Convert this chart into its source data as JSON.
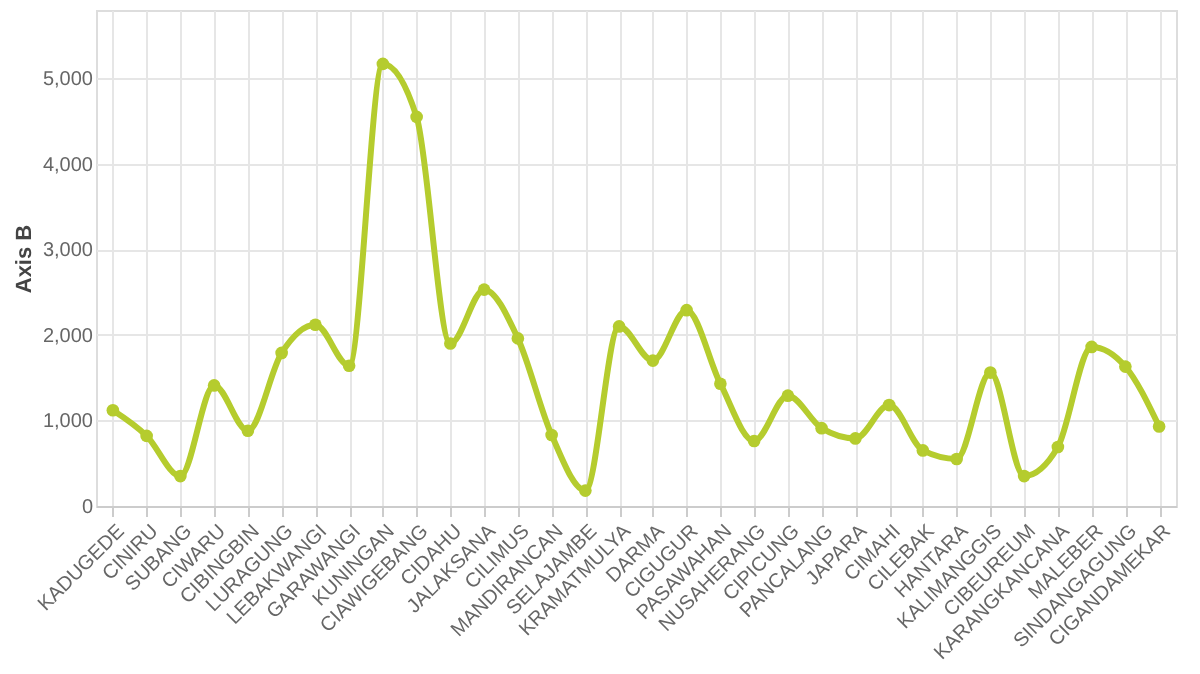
{
  "chart_data": {
    "type": "line",
    "ylabel": "Axis B",
    "categories": [
      "KADUGEDE",
      "CINIRU",
      "SUBANG",
      "CIWARU",
      "CIBINGBIN",
      "LURAGUNG",
      "LEBAKWANGI",
      "GARAWANGI",
      "KUNINGAN",
      "CIAWIGEBANG",
      "CIDAHU",
      "JALAKSANA",
      "CILIMUS",
      "MANDIRANCAN",
      "SELAJAMBE",
      "KRAMATMULYA",
      "DARMA",
      "CIGUGUR",
      "PASAWAHAN",
      "NUSAHERANG",
      "CIPICUNG",
      "PANCALANG",
      "JAPARA",
      "CIMAHI",
      "CILEBAK",
      "HANTARA",
      "KALIMANGGIS",
      "CIBEUREUM",
      "KARANGKANCANA",
      "MALEBER",
      "SINDANGAGUNG",
      "CIGANDAMEKAR"
    ],
    "series": [
      {
        "color": "#b5cc2e",
        "values": [
          1120,
          820,
          350,
          1410,
          880,
          1790,
          2120,
          1640,
          5170,
          4550,
          1900,
          2530,
          1960,
          830,
          180,
          2100,
          1700,
          2290,
          1430,
          760,
          1290,
          910,
          790,
          1180,
          650,
          550,
          1560,
          350,
          690,
          1860,
          1630,
          930
        ]
      }
    ],
    "ylim": [
      0,
      5800
    ],
    "yticks": [
      0,
      {
        "value": 1000,
        "label": "1,000"
      },
      {
        "value": 2000,
        "label": "2,000"
      },
      {
        "value": 3000,
        "label": "3,000"
      },
      {
        "value": 4000,
        "label": "4,000"
      },
      {
        "value": 5000,
        "label": "5,000"
      }
    ],
    "grid": true,
    "marker": "circle",
    "line_style": "solid"
  }
}
